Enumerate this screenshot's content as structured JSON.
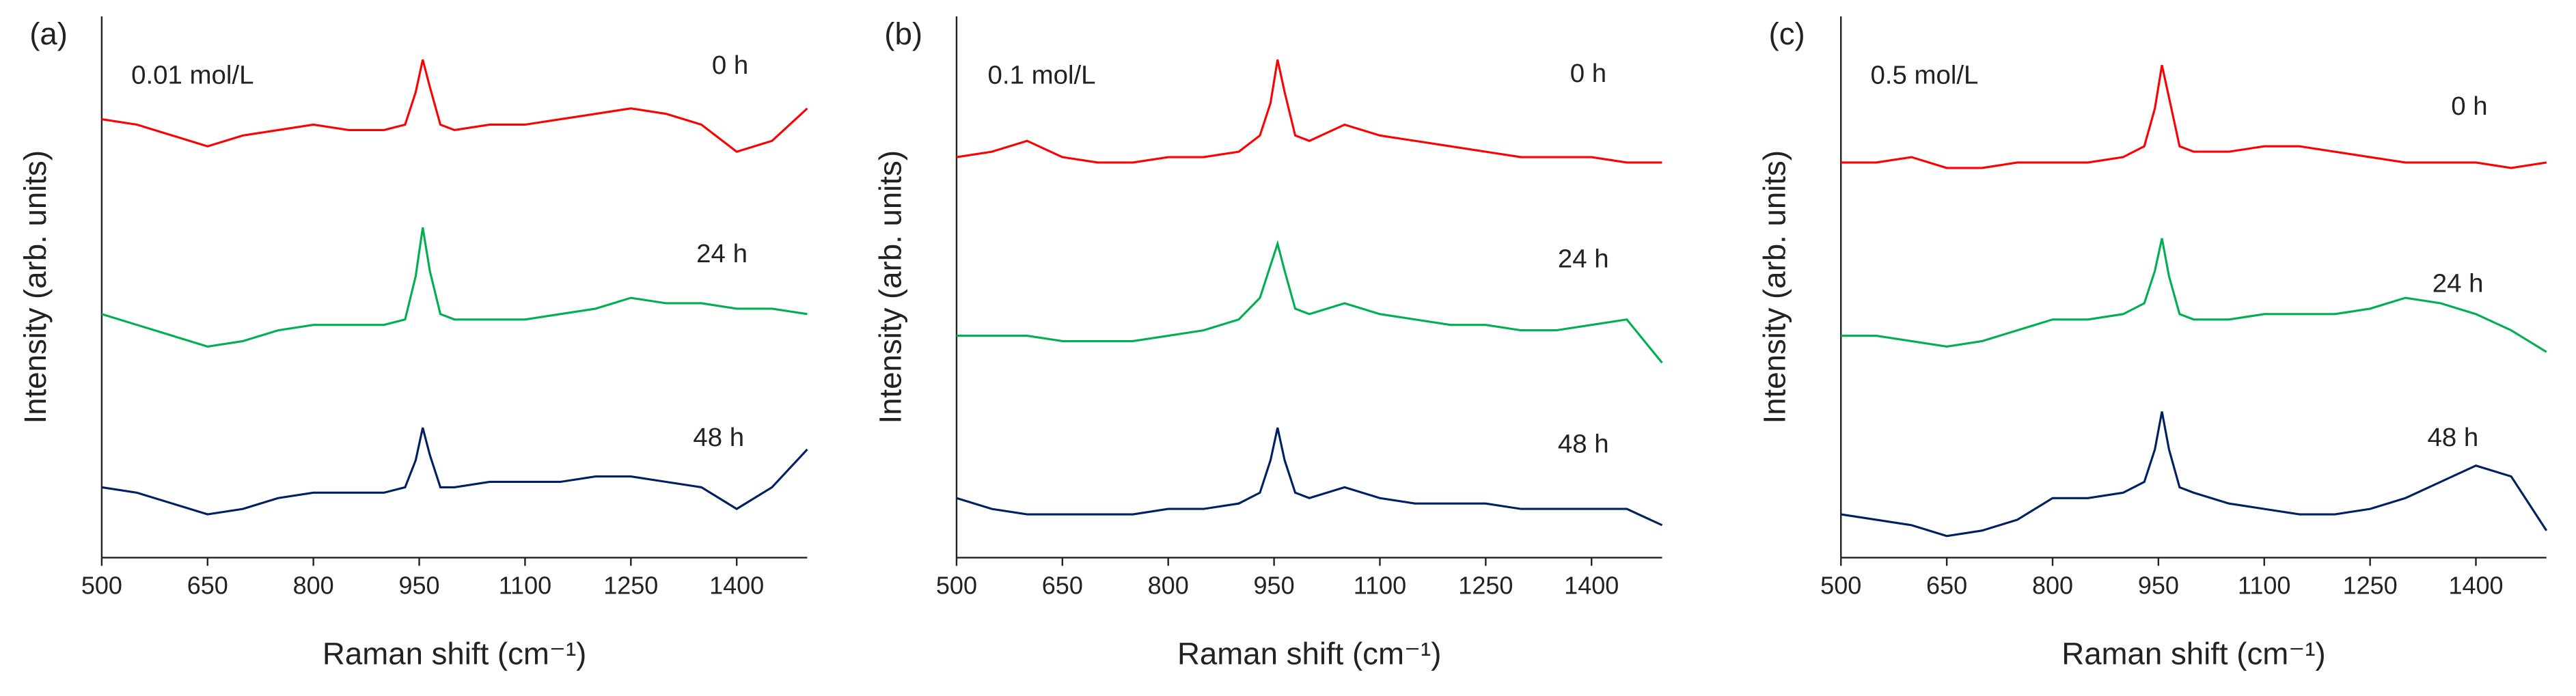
{
  "chart_data": [
    {
      "type": "line",
      "panel_label": "(a)",
      "subtitle": "0.01 mol/L",
      "x_label": "Raman shift (cm⁻¹)",
      "y_label": "Intensity (arb. units)",
      "xlim": [
        500,
        1500
      ],
      "xticks": [
        500,
        650,
        800,
        950,
        1100,
        1250,
        1400
      ],
      "ylim": [
        0,
        100
      ],
      "x": [
        500,
        550,
        600,
        650,
        700,
        750,
        800,
        850,
        900,
        930,
        945,
        955,
        965,
        980,
        1000,
        1050,
        1100,
        1150,
        1200,
        1250,
        1300,
        1350,
        1400,
        1450,
        1500
      ],
      "series": [
        {
          "name": "0 h",
          "color": "#ff0000",
          "values": [
            81,
            80,
            78,
            76,
            78,
            79,
            80,
            79,
            79,
            80,
            86,
            92,
            87,
            80,
            79,
            80,
            80,
            81,
            82,
            83,
            82,
            80,
            75,
            77,
            83
          ]
        },
        {
          "name": "24 h",
          "color": "#00b050",
          "values": [
            45,
            43,
            41,
            39,
            40,
            42,
            43,
            43,
            43,
            44,
            52,
            61,
            53,
            45,
            44,
            44,
            44,
            45,
            46,
            48,
            47,
            47,
            46,
            46,
            45
          ]
        },
        {
          "name": "48 h",
          "color": "#002060",
          "values": [
            13,
            12,
            10,
            8,
            9,
            11,
            12,
            12,
            12,
            13,
            18,
            24,
            19,
            13,
            13,
            14,
            14,
            14,
            15,
            15,
            14,
            13,
            9,
            13,
            20
          ]
        }
      ]
    },
    {
      "type": "line",
      "panel_label": "(b)",
      "subtitle": "0.1 mol/L",
      "x_label": "Raman shift (cm⁻¹)",
      "y_label": "Intensity (arb. units)",
      "xlim": [
        500,
        1500
      ],
      "xticks": [
        500,
        650,
        800,
        950,
        1100,
        1250,
        1400
      ],
      "ylim": [
        0,
        100
      ],
      "x": [
        500,
        550,
        600,
        650,
        700,
        750,
        800,
        850,
        900,
        930,
        945,
        955,
        965,
        980,
        1000,
        1050,
        1100,
        1150,
        1200,
        1250,
        1300,
        1350,
        1400,
        1450,
        1500
      ],
      "series": [
        {
          "name": "0 h",
          "color": "#ff0000",
          "values": [
            74,
            75,
            77,
            74,
            73,
            73,
            74,
            74,
            75,
            78,
            84,
            92,
            86,
            78,
            77,
            80,
            78,
            77,
            76,
            75,
            74,
            74,
            74,
            73,
            73
          ]
        },
        {
          "name": "24 h",
          "color": "#00b050",
          "values": [
            41,
            41,
            41,
            40,
            40,
            40,
            41,
            42,
            44,
            48,
            54,
            58,
            53,
            46,
            45,
            47,
            45,
            44,
            43,
            43,
            42,
            42,
            43,
            44,
            36
          ]
        },
        {
          "name": "48 h",
          "color": "#002060",
          "values": [
            11,
            9,
            8,
            8,
            8,
            8,
            9,
            9,
            10,
            12,
            18,
            24,
            18,
            12,
            11,
            13,
            11,
            10,
            10,
            10,
            9,
            9,
            9,
            9,
            6
          ]
        }
      ]
    },
    {
      "type": "line",
      "panel_label": "(c)",
      "subtitle": "0.5 mol/L",
      "x_label": "Raman shift (cm⁻¹)",
      "y_label": "Intensity (arb. units)",
      "xlim": [
        500,
        1500
      ],
      "xticks": [
        500,
        650,
        800,
        950,
        1100,
        1250,
        1400
      ],
      "ylim": [
        0,
        100
      ],
      "x": [
        500,
        550,
        600,
        650,
        700,
        750,
        800,
        850,
        900,
        930,
        945,
        955,
        965,
        980,
        1000,
        1050,
        1100,
        1150,
        1200,
        1250,
        1300,
        1350,
        1400,
        1450,
        1500
      ],
      "series": [
        {
          "name": "0 h",
          "color": "#ff0000",
          "values": [
            73,
            73,
            74,
            72,
            72,
            73,
            73,
            73,
            74,
            76,
            83,
            91,
            85,
            76,
            75,
            75,
            76,
            76,
            75,
            74,
            73,
            73,
            73,
            72,
            73
          ]
        },
        {
          "name": "24 h",
          "color": "#00b050",
          "values": [
            41,
            41,
            40,
            39,
            40,
            42,
            44,
            44,
            45,
            47,
            53,
            59,
            52,
            45,
            44,
            44,
            45,
            45,
            45,
            46,
            48,
            47,
            45,
            42,
            38
          ]
        },
        {
          "name": "48 h",
          "color": "#002060",
          "values": [
            8,
            7,
            6,
            4,
            5,
            7,
            11,
            11,
            12,
            14,
            20,
            27,
            20,
            13,
            12,
            10,
            9,
            8,
            8,
            9,
            11,
            14,
            17,
            15,
            5
          ]
        }
      ]
    }
  ]
}
